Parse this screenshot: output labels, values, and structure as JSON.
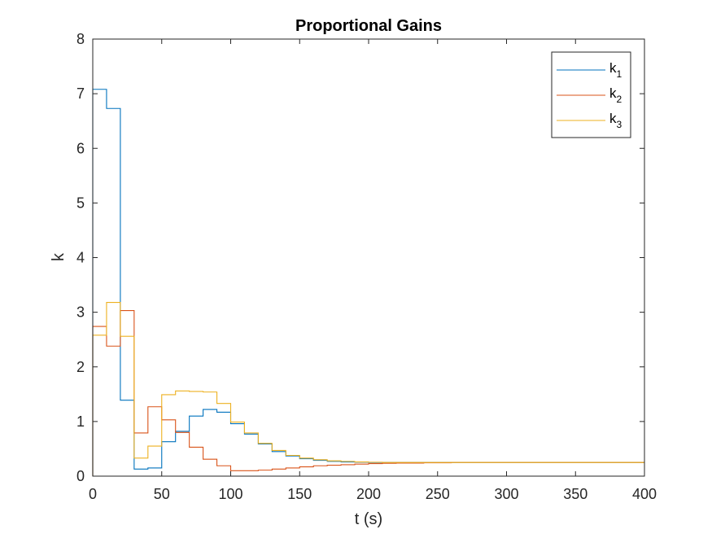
{
  "chart_data": {
    "type": "line",
    "title": "Proportional Gains",
    "xlabel": "t (s)",
    "ylabel": "k",
    "xlim": [
      0,
      400
    ],
    "ylim": [
      0,
      8
    ],
    "xticks": [
      0,
      50,
      100,
      150,
      200,
      250,
      300,
      350,
      400
    ],
    "yticks": [
      0,
      1,
      2,
      3,
      4,
      5,
      6,
      7,
      8
    ],
    "grid": false,
    "legend_position": "top-right",
    "step": true,
    "series": [
      {
        "name": "k1",
        "label_main": "k",
        "label_sub": "1",
        "color": "#0072BD",
        "x": [
          0,
          10,
          20,
          30,
          40,
          50,
          60,
          70,
          80,
          90,
          100,
          110,
          120,
          130,
          140,
          150,
          160,
          170,
          180,
          190,
          200,
          210,
          220,
          230,
          240,
          250,
          260,
          270,
          280,
          290,
          300,
          310,
          320,
          330,
          340,
          350,
          360,
          370,
          380,
          390,
          400
        ],
        "y": [
          7.08,
          6.73,
          1.39,
          0.13,
          0.15,
          0.63,
          0.82,
          1.1,
          1.22,
          1.17,
          0.96,
          0.77,
          0.59,
          0.45,
          0.37,
          0.32,
          0.29,
          0.27,
          0.26,
          0.255,
          0.25,
          0.25,
          0.25,
          0.25,
          0.25,
          0.25,
          0.25,
          0.25,
          0.25,
          0.25,
          0.25,
          0.25,
          0.25,
          0.25,
          0.25,
          0.25,
          0.25,
          0.25,
          0.25,
          0.25,
          0.25
        ]
      },
      {
        "name": "k2",
        "label_main": "k",
        "label_sub": "2",
        "color": "#D95319",
        "x": [
          0,
          10,
          20,
          30,
          40,
          50,
          60,
          70,
          80,
          90,
          100,
          110,
          120,
          130,
          140,
          150,
          160,
          170,
          180,
          190,
          200,
          210,
          220,
          230,
          240,
          250,
          260,
          270,
          280,
          290,
          300,
          310,
          320,
          330,
          340,
          350,
          360,
          370,
          380,
          390,
          400
        ],
        "y": [
          2.74,
          2.38,
          3.03,
          0.79,
          1.27,
          1.03,
          0.8,
          0.53,
          0.31,
          0.19,
          0.1,
          0.1,
          0.11,
          0.13,
          0.15,
          0.17,
          0.19,
          0.2,
          0.21,
          0.22,
          0.23,
          0.235,
          0.24,
          0.24,
          0.245,
          0.245,
          0.25,
          0.25,
          0.25,
          0.25,
          0.25,
          0.25,
          0.25,
          0.25,
          0.25,
          0.25,
          0.25,
          0.25,
          0.25,
          0.25,
          0.25
        ]
      },
      {
        "name": "k3",
        "label_main": "k",
        "label_sub": "3",
        "color": "#EDB120",
        "x": [
          0,
          10,
          20,
          30,
          40,
          50,
          60,
          70,
          80,
          90,
          100,
          110,
          120,
          130,
          140,
          150,
          160,
          170,
          180,
          190,
          200,
          210,
          220,
          230,
          240,
          250,
          260,
          270,
          280,
          290,
          300,
          310,
          320,
          330,
          340,
          350,
          360,
          370,
          380,
          390,
          400
        ],
        "y": [
          2.58,
          3.18,
          2.56,
          0.33,
          0.55,
          1.49,
          1.56,
          1.55,
          1.54,
          1.33,
          0.99,
          0.79,
          0.6,
          0.47,
          0.38,
          0.33,
          0.3,
          0.28,
          0.27,
          0.26,
          0.255,
          0.25,
          0.25,
          0.25,
          0.25,
          0.25,
          0.25,
          0.25,
          0.25,
          0.25,
          0.25,
          0.25,
          0.25,
          0.25,
          0.25,
          0.25,
          0.25,
          0.25,
          0.25,
          0.25,
          0.25
        ]
      }
    ]
  }
}
